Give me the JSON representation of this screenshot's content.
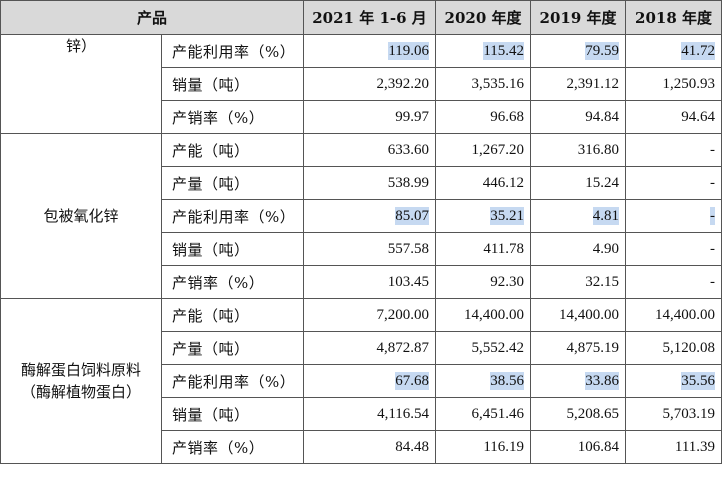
{
  "header": {
    "product": "产品",
    "col_2021h1": "2021 年 1-6 月",
    "col_2020": "2020 年度",
    "col_2019": "2019 年度",
    "col_2018": "2018 年度"
  },
  "groups": [
    {
      "product_lines": [
        "锌）"
      ],
      "rows": [
        {
          "metric": "产能利用率（%）",
          "values": [
            "119.06",
            "115.42",
            "79.59",
            "41.72"
          ],
          "highlighted": true
        },
        {
          "metric": "销量（吨）",
          "values": [
            "2,392.20",
            "3,535.16",
            "2,391.12",
            "1,250.93"
          ],
          "highlighted": false
        },
        {
          "metric": "产销率（%）",
          "values": [
            "99.97",
            "96.68",
            "94.84",
            "94.64"
          ],
          "highlighted": false
        }
      ]
    },
    {
      "product_lines": [
        "包被氧化锌"
      ],
      "rows": [
        {
          "metric": "产能（吨）",
          "values": [
            "633.60",
            "1,267.20",
            "316.80",
            "-"
          ],
          "highlighted": false
        },
        {
          "metric": "产量（吨）",
          "values": [
            "538.99",
            "446.12",
            "15.24",
            "-"
          ],
          "highlighted": false
        },
        {
          "metric": "产能利用率（%）",
          "values": [
            "85.07",
            "35.21",
            "4.81",
            "-"
          ],
          "highlighted": true
        },
        {
          "metric": "销量（吨）",
          "values": [
            "557.58",
            "411.78",
            "4.90",
            "-"
          ],
          "highlighted": false
        },
        {
          "metric": "产销率（%）",
          "values": [
            "103.45",
            "92.30",
            "32.15",
            "-"
          ],
          "highlighted": false
        }
      ]
    },
    {
      "product_lines": [
        "酶解蛋白饲料原料",
        "（酶解植物蛋白）"
      ],
      "rows": [
        {
          "metric": "产能（吨）",
          "values": [
            "7,200.00",
            "14,400.00",
            "14,400.00",
            "14,400.00"
          ],
          "highlighted": false
        },
        {
          "metric": "产量（吨）",
          "values": [
            "4,872.87",
            "5,552.42",
            "4,875.19",
            "5,120.08"
          ],
          "highlighted": false
        },
        {
          "metric": "产能利用率（%）",
          "values": [
            "67.68",
            "38.56",
            "33.86",
            "35.56"
          ],
          "highlighted": true
        },
        {
          "metric": "销量（吨）",
          "values": [
            "4,116.54",
            "6,451.46",
            "5,208.65",
            "5,703.19"
          ],
          "highlighted": false
        },
        {
          "metric": "产销率（%）",
          "values": [
            "84.48",
            "116.19",
            "106.84",
            "111.39"
          ],
          "highlighted": false
        }
      ]
    }
  ]
}
